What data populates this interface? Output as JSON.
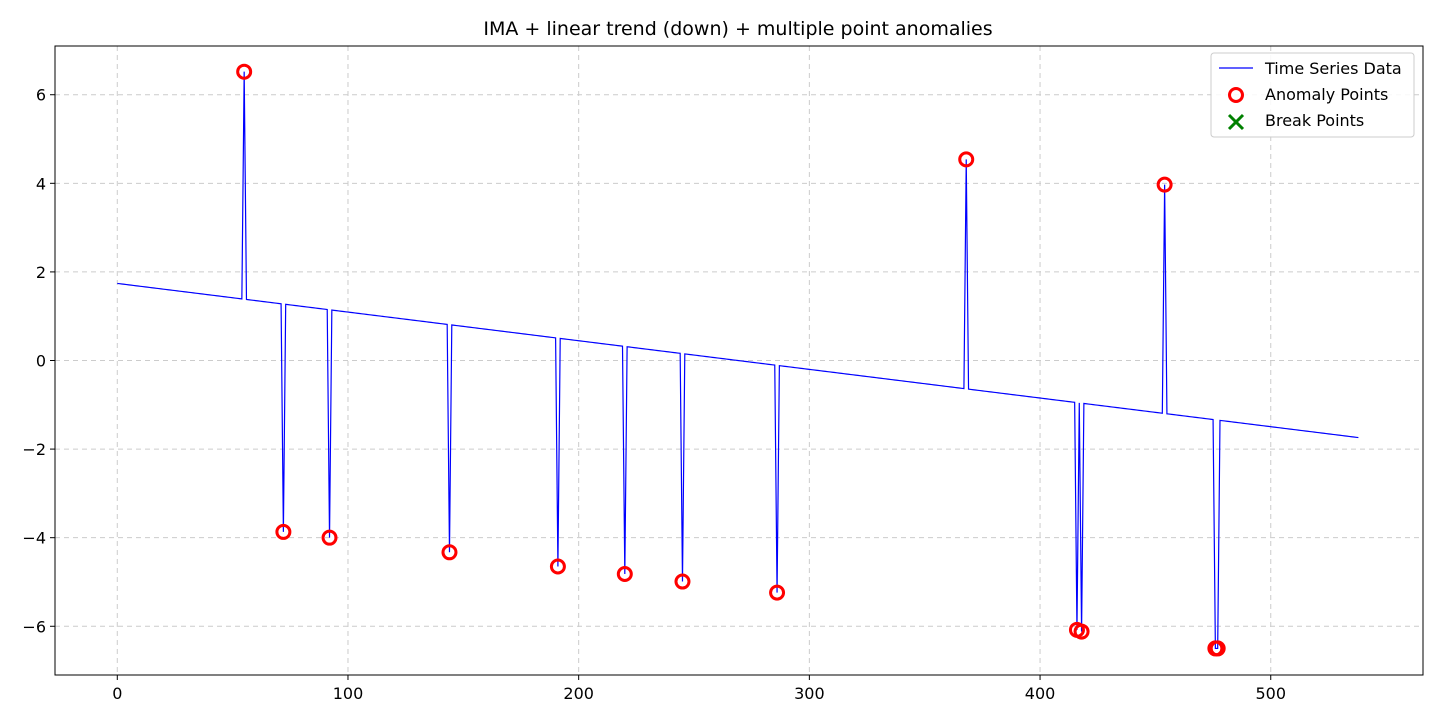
{
  "chart_data": {
    "type": "line",
    "title": "IMA + linear trend (down) + multiple point anomalies",
    "xlabel": "",
    "ylabel": "",
    "xlim": [
      -27,
      566
    ],
    "ylim": [
      -7.1,
      7.1
    ],
    "x_ticks": [
      0,
      100,
      200,
      300,
      400,
      500
    ],
    "y_ticks": [
      -6,
      -4,
      -2,
      0,
      2,
      4,
      6
    ],
    "grid": true,
    "legend_position": "top-right",
    "colors": {
      "series": "#0000ff",
      "anomaly": "#ff0000",
      "break": "#008000",
      "grid": "#cccccc"
    },
    "legend": [
      {
        "label": "Time Series Data",
        "marker": "line"
      },
      {
        "label": "Anomaly Points",
        "marker": "circle"
      },
      {
        "label": "Break Points",
        "marker": "x"
      }
    ],
    "trend": {
      "x_start": 0,
      "y_start": 1.74,
      "x_end": 538,
      "y_end": -1.74
    },
    "series": [
      {
        "name": "Time Series Data",
        "x_range": [
          0,
          538
        ]
      }
    ],
    "anomaly_points": [
      {
        "x": 55,
        "y": 6.52
      },
      {
        "x": 72,
        "y": -3.87
      },
      {
        "x": 92,
        "y": -4.0
      },
      {
        "x": 144,
        "y": -4.33
      },
      {
        "x": 191,
        "y": -4.65
      },
      {
        "x": 220,
        "y": -4.82
      },
      {
        "x": 245,
        "y": -4.99
      },
      {
        "x": 286,
        "y": -5.24
      },
      {
        "x": 368,
        "y": 4.54
      },
      {
        "x": 416,
        "y": -6.08
      },
      {
        "x": 418,
        "y": -6.12
      },
      {
        "x": 454,
        "y": 3.97
      },
      {
        "x": 476,
        "y": -6.5
      },
      {
        "x": 477,
        "y": -6.5
      }
    ],
    "break_points": []
  }
}
